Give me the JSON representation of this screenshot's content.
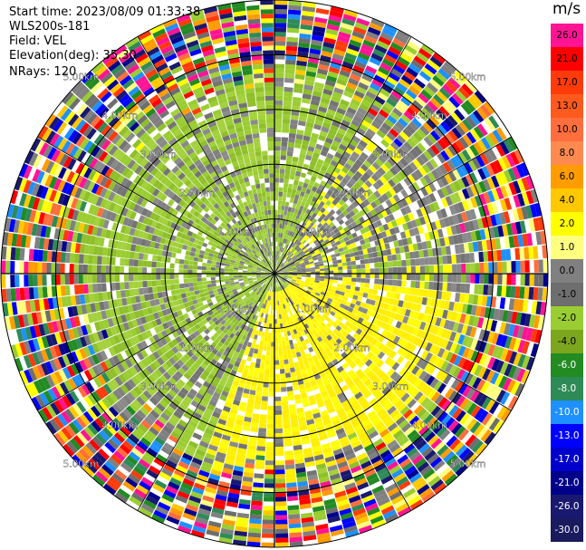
{
  "header": {
    "start_time": "Start time: 2023/08/09 01:33:38",
    "instrument": "WLS200s-181",
    "field": "Field: VEL",
    "elevation": "Elevation(deg): 35.30",
    "nrays": "NRays: 120"
  },
  "colorbar": {
    "unit": "m/s",
    "labels": [
      "26.0",
      "21.0",
      "17.0",
      "13.0",
      "10.0",
      "8.0",
      "6.0",
      "4.0",
      "2.0",
      "1.0",
      "0.0",
      "-1.0",
      "-2.0",
      "-4.0",
      "-6.0",
      "-8.0",
      "-10.0",
      "-13.0",
      "-17.0",
      "-21.0",
      "-26.0",
      "-30.0"
    ],
    "colors": [
      "#ff1493",
      "#ff0000",
      "#ff3b0a",
      "#ff5a1e",
      "#ff6e3c",
      "#ff8a50",
      "#ff9c00",
      "#ffc800",
      "#ffff00",
      "#ffff80",
      "#808080",
      "#6e6e6e",
      "#9acd32",
      "#7ca61e",
      "#228b22",
      "#2e8b57",
      "#1e90ff",
      "#0000ff",
      "#0000cd",
      "#00008b",
      "#191970",
      "#1a1a5e"
    ]
  },
  "chart_data": {
    "type": "ppi",
    "title": "",
    "n_rays": 120,
    "range_rings_km": [
      1.0,
      2.0,
      3.0,
      4.0,
      5.0
    ],
    "ring_labels": [
      "1.00km",
      "2.00km",
      "3.00km",
      "4.00km",
      "5.00km"
    ],
    "max_range_km": 5.0,
    "value_range": [
      -30.0,
      26.0
    ],
    "field": "VEL",
    "grid": true
  }
}
